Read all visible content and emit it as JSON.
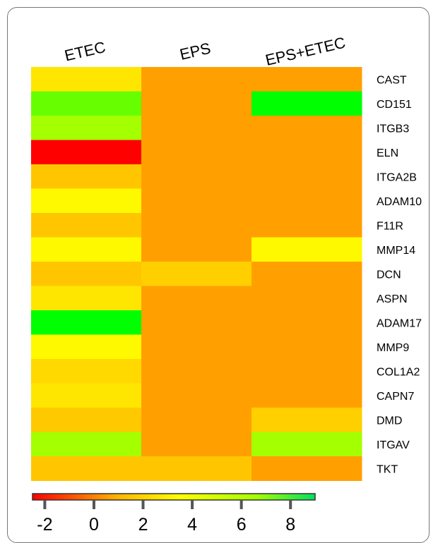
{
  "chart_data": {
    "type": "heatmap",
    "columns": [
      "ETEC",
      "EPS",
      "EPS+ETEC"
    ],
    "rows": [
      "CAST",
      "CD151",
      "ITGB3",
      "ELN",
      "ITGA2B",
      "ADAM10",
      "F11R",
      "MMP14",
      "DCN",
      "ASPN",
      "ADAM17",
      "MMP9",
      "COL1A2",
      "CAPN7",
      "DMD",
      "ITGAV",
      "TKT"
    ],
    "values": [
      [
        3.2,
        1.0,
        1.0
      ],
      [
        6.5,
        1.0,
        8.2
      ],
      [
        5.5,
        1.0,
        1.0
      ],
      [
        -2.0,
        1.0,
        1.0
      ],
      [
        2.2,
        1.0,
        1.0
      ],
      [
        3.8,
        1.0,
        1.0
      ],
      [
        2.2,
        1.0,
        1.0
      ],
      [
        3.8,
        1.0,
        3.8
      ],
      [
        2.2,
        2.5,
        1.0
      ],
      [
        3.2,
        1.0,
        1.0
      ],
      [
        8.2,
        1.0,
        1.0
      ],
      [
        3.8,
        1.0,
        1.0
      ],
      [
        2.8,
        1.0,
        1.0
      ],
      [
        3.2,
        1.0,
        1.0
      ],
      [
        2.3,
        1.0,
        2.5
      ],
      [
        5.5,
        1.0,
        5.5
      ],
      [
        2.2,
        2.2,
        1.0
      ]
    ],
    "colorbar": {
      "min": -2.5,
      "max": 9,
      "ticks": [
        -2,
        0,
        2,
        4,
        6,
        8
      ],
      "tick_labels": [
        "-2",
        "0",
        "2",
        "4",
        "6",
        "8"
      ],
      "colors": [
        "#ff0000",
        "#ff8000",
        "#ffff00",
        "#00ff00"
      ]
    }
  }
}
